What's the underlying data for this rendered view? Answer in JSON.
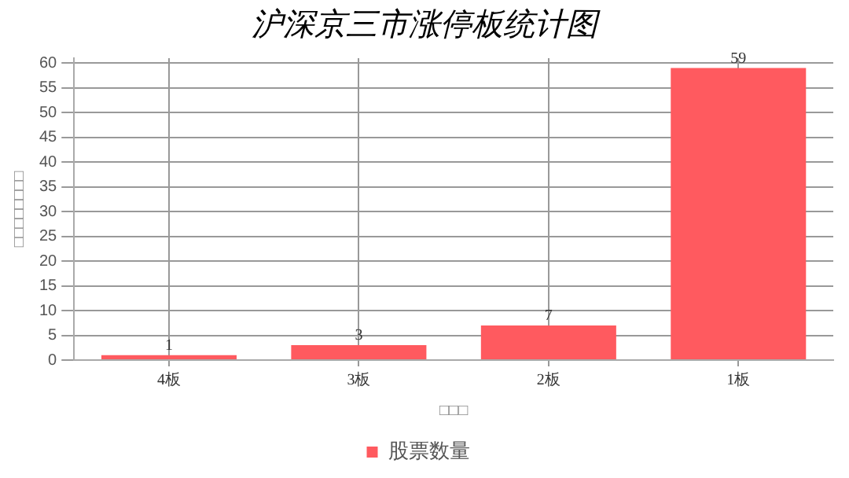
{
  "chart_data": {
    "type": "bar",
    "title": "沪深京三市涨停板统计图",
    "xlabel": "□□□",
    "ylabel": "□□□□□□□□",
    "categories": [
      "4板",
      "3板",
      "2板",
      "1板"
    ],
    "series": [
      {
        "name": "股票数量",
        "color": "#ff5a5f",
        "values": [
          1,
          3,
          7,
          59
        ]
      }
    ],
    "ylim": [
      0,
      61
    ],
    "yticks": [
      0,
      5,
      10,
      15,
      20,
      25,
      30,
      35,
      40,
      45,
      50,
      55,
      60
    ],
    "grid": true,
    "legend": "bottom",
    "data_labels": true
  }
}
